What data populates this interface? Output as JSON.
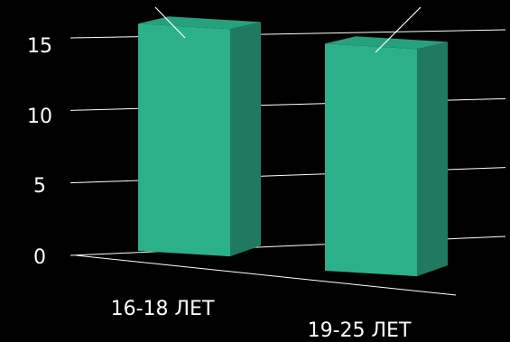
{
  "chart_data": {
    "type": "bar",
    "categories": [
      "16-18 ЛЕТ",
      "19-25 ЛЕТ"
    ],
    "values": [
      16,
      16
    ],
    "ylim": [
      0,
      15
    ],
    "yticks": [
      "0",
      "5",
      "10",
      "15"
    ],
    "grid": true,
    "legend": "none",
    "style": "3d-columns",
    "colors": {
      "bar_front": "#2cb08a",
      "bar_top": "#27a07d",
      "bar_side": "#1f7a61",
      "gridline": "#ffffff",
      "text": "#ffffff",
      "background": "#000000"
    }
  }
}
